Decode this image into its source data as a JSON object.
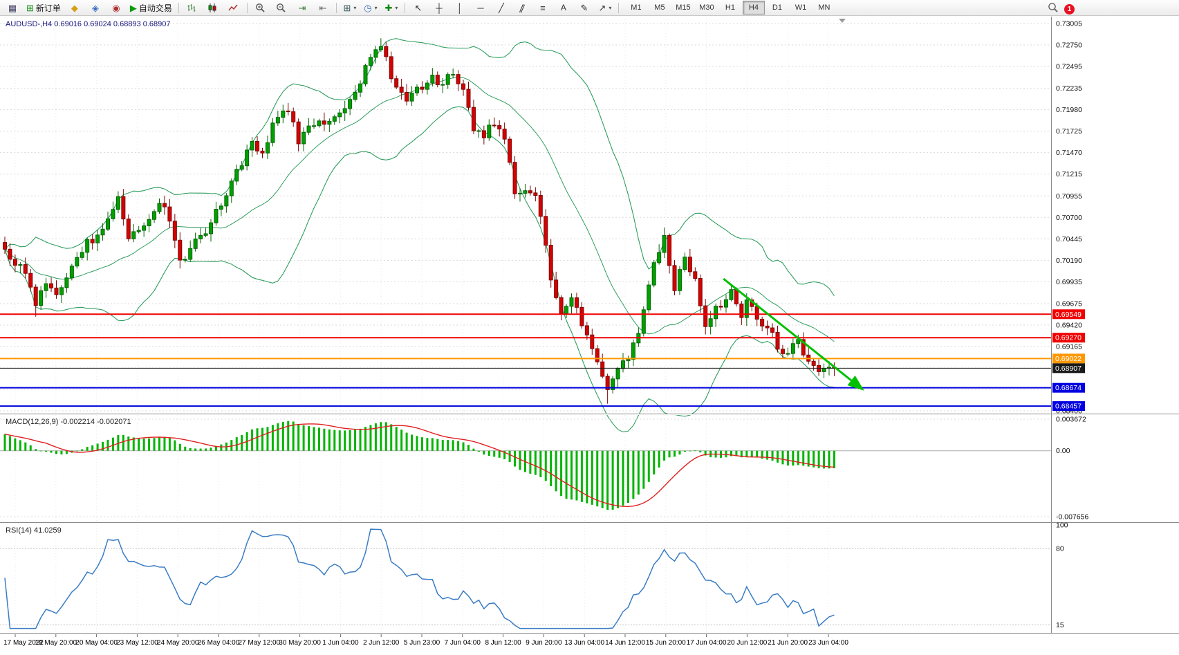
{
  "toolbar": {
    "new_order_label": "新订单",
    "autotrading_label": "自动交易",
    "timeframes": [
      "M1",
      "M5",
      "M15",
      "M30",
      "H1",
      "H4",
      "D1",
      "W1",
      "MN"
    ],
    "active_timeframe": "H4",
    "notification_badge": "1"
  },
  "main_chart": {
    "symbol_period": "AUDUSD-,H4",
    "open": "0.69016",
    "high": "0.69024",
    "low": "0.68893",
    "close": "0.68907"
  },
  "chart_data": {
    "type": "candlestick",
    "symbol": "AUDUSD",
    "timeframe": "H4",
    "price_axis_labels": [
      "0.73005",
      "0.72750",
      "0.72495",
      "0.72235",
      "0.71980",
      "0.71725",
      "0.71470",
      "0.71215",
      "0.70955",
      "0.70700",
      "0.70445",
      "0.70190",
      "0.69935",
      "0.69675",
      "0.69420",
      "0.69165",
      "0.68400"
    ],
    "extra_grid_prices": [
      0.6891,
      0.68655
    ],
    "price_axis_range": [
      0.684,
      0.73005
    ],
    "horizontal_lines": [
      {
        "label": "0.69549",
        "price": 0.69549,
        "color": "#f00000",
        "width": 2
      },
      {
        "label": "0.69270",
        "price": 0.6927,
        "color": "#f00000",
        "width": 2
      },
      {
        "label": "0.69022",
        "price": 0.69022,
        "color": "#ff9800",
        "width": 2
      },
      {
        "label": "0.68907",
        "price": 0.68907,
        "color": "#1a1a1a",
        "width": 1
      },
      {
        "label": "0.68674",
        "price": 0.68674,
        "color": "#0000e0",
        "width": 2
      },
      {
        "label": "0.68457",
        "price": 0.68457,
        "color": "#0000e0",
        "width": 2
      }
    ],
    "trend_arrow": {
      "from_bar": 139.5,
      "from_price": 0.6997,
      "to_bar": 166.5,
      "to_price": 0.68655,
      "color": "#00c000"
    },
    "bollinger": {
      "period": 20,
      "deviation": 2,
      "color": "#2f9e5f"
    },
    "candle_colors": {
      "up": "#00a000",
      "up_dark": "#046404",
      "down": "#d40202",
      "down_dark": "#7c0404"
    },
    "bars_total": 162,
    "price_keypoints": [
      [
        0,
        0.703
      ],
      [
        2,
        0.7018
      ],
      [
        4,
        0.7002
      ],
      [
        6,
        0.6966
      ],
      [
        8,
        0.6992
      ],
      [
        10,
        0.6978
      ],
      [
        13,
        0.7012
      ],
      [
        16,
        0.704
      ],
      [
        19,
        0.7052
      ],
      [
        22,
        0.7094
      ],
      [
        24,
        0.7046
      ],
      [
        27,
        0.7062
      ],
      [
        30,
        0.7086
      ],
      [
        32,
        0.707
      ],
      [
        34,
        0.7016
      ],
      [
        36,
        0.7032
      ],
      [
        38,
        0.7046
      ],
      [
        42,
        0.7086
      ],
      [
        45,
        0.7124
      ],
      [
        48,
        0.716
      ],
      [
        50,
        0.7148
      ],
      [
        53,
        0.7194
      ],
      [
        55,
        0.7198
      ],
      [
        57,
        0.716
      ],
      [
        59,
        0.718
      ],
      [
        62,
        0.718
      ],
      [
        65,
        0.719
      ],
      [
        67,
        0.7212
      ],
      [
        69,
        0.723
      ],
      [
        71,
        0.7264
      ],
      [
        73,
        0.7276
      ],
      [
        75,
        0.7236
      ],
      [
        78,
        0.721
      ],
      [
        80,
        0.7222
      ],
      [
        83,
        0.7236
      ],
      [
        85,
        0.7228
      ],
      [
        87,
        0.7242
      ],
      [
        89,
        0.722
      ],
      [
        91,
        0.7176
      ],
      [
        93,
        0.7168
      ],
      [
        95,
        0.7182
      ],
      [
        97,
        0.7166
      ],
      [
        99,
        0.7096
      ],
      [
        101,
        0.7106
      ],
      [
        103,
        0.71
      ],
      [
        105,
        0.7032
      ],
      [
        106,
        0.6996
      ],
      [
        108,
        0.696
      ],
      [
        110,
        0.6976
      ],
      [
        113,
        0.6926
      ],
      [
        115,
        0.6896
      ],
      [
        117,
        0.6862
      ],
      [
        119,
        0.6886
      ],
      [
        122,
        0.6916
      ],
      [
        124,
        0.6958
      ],
      [
        126,
        0.7016
      ],
      [
        128,
        0.7044
      ],
      [
        130,
        0.6986
      ],
      [
        132,
        0.702
      ],
      [
        134,
        0.6992
      ],
      [
        136,
        0.6936
      ],
      [
        138,
        0.6962
      ],
      [
        141,
        0.698
      ],
      [
        143,
        0.6956
      ],
      [
        144,
        0.697
      ],
      [
        146,
        0.695
      ],
      [
        148,
        0.694
      ],
      [
        150,
        0.6916
      ],
      [
        152,
        0.6906
      ],
      [
        154,
        0.6926
      ],
      [
        156,
        0.6896
      ],
      [
        158,
        0.6886
      ],
      [
        160,
        0.6892
      ],
      [
        161,
        0.68907
      ]
    ],
    "wick_extremes": [
      {
        "bar": 6,
        "low": 0.6952
      },
      {
        "bar": 73,
        "high": 0.7283
      },
      {
        "bar": 117,
        "low": 0.68485
      },
      {
        "bar": 128,
        "high": 0.7058
      }
    ],
    "time_labels": [
      "17 May 2022",
      "18 May 20:00",
      "20 May 04:00",
      "23 May 12:00",
      "24 May 20:00",
      "26 May 04:00",
      "27 May 12:00",
      "30 May 20:00",
      "1 Jun 04:00",
      "2 Jun 12:00",
      "5 Jun 23:00",
      "7 Jun 04:00",
      "8 Jun 12:00",
      "9 Jun 20:00",
      "13 Jun 04:00",
      "14 Jun 12:00",
      "15 Jun 20:00",
      "17 Jun 04:00",
      "20 Jun 12:00",
      "21 Jun 20:00",
      "23 Jun 04:00"
    ],
    "indicators": [
      {
        "name": "MACD",
        "label": "MACD(12,26,9)",
        "values_text": "-0.002214 -0.002071",
        "axis_labels": [
          "0.003672",
          "0.00",
          "-0.007656"
        ],
        "axis_range": [
          -0.007656,
          0.003672
        ],
        "histogram_color": "#00b400",
        "signal_color": "#e02020"
      },
      {
        "name": "RSI",
        "label": "RSI(14)",
        "value_text": "41.0259",
        "axis_labels": [
          "100",
          "80",
          "15"
        ],
        "levels": [
          80,
          15
        ],
        "line_color": "#3a7cc4"
      }
    ]
  }
}
